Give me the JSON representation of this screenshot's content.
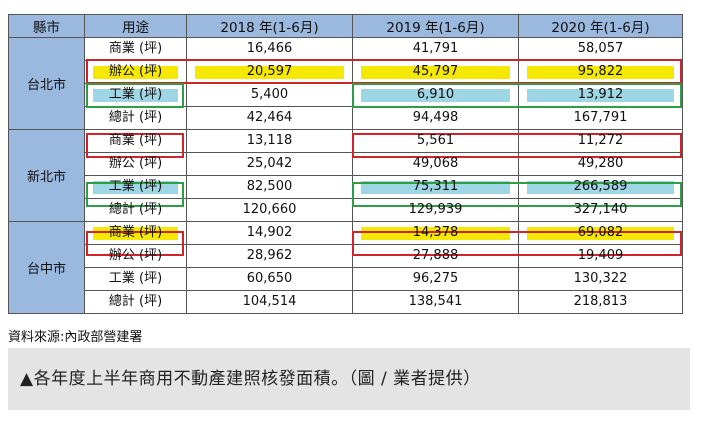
{
  "table": {
    "headers": [
      "縣市",
      "用途",
      "2018 年(1-6月)",
      "2019 年(1-6月)",
      "2020 年(1-6月)"
    ],
    "groups": [
      {
        "city": "台北市",
        "rows": [
          {
            "use": "商業 (坪)",
            "v2018": "16,466",
            "v2019": "41,791",
            "v2020": "58,057"
          },
          {
            "use": "辦公 (坪)",
            "v2018": "20,597",
            "v2019": "45,797",
            "v2020": "95,822"
          },
          {
            "use": "工業 (坪)",
            "v2018": "5,400",
            "v2019": "6,910",
            "v2020": "13,912"
          },
          {
            "use": "總計 (坪)",
            "v2018": "42,464",
            "v2019": "94,498",
            "v2020": "167,791"
          }
        ]
      },
      {
        "city": "新北市",
        "rows": [
          {
            "use": "商業 (坪)",
            "v2018": "13,118",
            "v2019": "5,561",
            "v2020": "11,272"
          },
          {
            "use": "辦公 (坪)",
            "v2018": "25,042",
            "v2019": "49,068",
            "v2020": "49,280"
          },
          {
            "use": "工業 (坪)",
            "v2018": "82,500",
            "v2019": "75,311",
            "v2020": "266,589"
          },
          {
            "use": "總計 (坪)",
            "v2018": "120,660",
            "v2019": "129,939",
            "v2020": "327,140"
          }
        ]
      },
      {
        "city": "台中市",
        "rows": [
          {
            "use": "商業 (坪)",
            "v2018": "14,902",
            "v2019": "14,378",
            "v2020": "69,082"
          },
          {
            "use": "辦公 (坪)",
            "v2018": "28,962",
            "v2019": "27,888",
            "v2020": "19,409"
          },
          {
            "use": "工業 (坪)",
            "v2018": "60,650",
            "v2019": "96,275",
            "v2020": "130,322"
          },
          {
            "use": "總計 (坪)",
            "v2018": "104,514",
            "v2019": "138,541",
            "v2020": "218,813"
          }
        ]
      }
    ]
  },
  "source": "資料來源:內政部營建署",
  "caption": "▲各年度上半年商用不動產建照核發面積。（圖 / 業者提供）",
  "colors": {
    "header_bg": "#9bb8df",
    "highlight_yellow": "#f5e805",
    "highlight_cyan": "#9fd6e5",
    "box_red": "#d2232a",
    "box_green": "#2e9e44",
    "caption_bg": "#e4e4e4"
  }
}
